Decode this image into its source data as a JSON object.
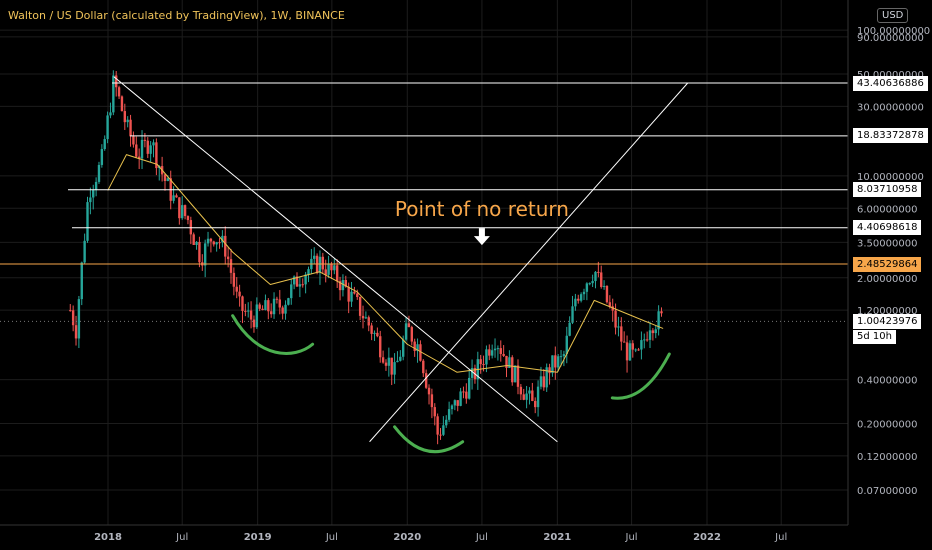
{
  "header": {
    "title": "Walton / US Dollar (calculated by TradingView), 1W, BINANCE",
    "currency": "USD"
  },
  "chart_data": {
    "type": "candlestick",
    "title": "Walton / US Dollar (calculated by TradingView), 1W, BINANCE",
    "y_scale": "log",
    "ylim": [
      0.05,
      110
    ],
    "y_ticks": [
      "100.00000000",
      "90.00000000",
      "50.00000000",
      "30.00000000",
      "10.00000000",
      "6.00000000",
      "3.50000000",
      "2.00000000",
      "1.20000000",
      "0.40000000",
      "0.20000000",
      "0.12000000",
      "0.07000000"
    ],
    "y_tick_values": [
      100,
      90,
      50,
      30,
      10,
      6,
      3.5,
      2,
      1.2,
      0.4,
      0.2,
      0.12,
      0.07
    ],
    "x_ticks": [
      "2018",
      "Jul",
      "2019",
      "Jul",
      "2020",
      "Jul",
      "2021",
      "Jul",
      "2022",
      "Jul"
    ],
    "x_tick_dates": [
      "2018-01-01",
      "2018-07-01",
      "2019-01-01",
      "2019-07-01",
      "2020-01-01",
      "2020-07-01",
      "2021-01-01",
      "2021-07-01",
      "2022-01-01",
      "2022-07-01"
    ],
    "horizontal_levels": [
      {
        "value": 43.40636886,
        "label": "43.40636886",
        "color": "#ffffff"
      },
      {
        "value": 18.83372878,
        "label": "18.83372878",
        "color": "#ffffff"
      },
      {
        "value": 8.03710958,
        "label": "8.03710958",
        "color": "#ffffff"
      },
      {
        "value": 4.40698618,
        "label": "4.40698618",
        "color": "#ffffff"
      },
      {
        "value": 2.48529864,
        "label": "2.48529864",
        "color": "#f7a64a"
      }
    ],
    "last_price": {
      "value": 1.00423976,
      "label": "1.00423976",
      "countdown": "5d 10h"
    },
    "trend_lines": [
      {
        "from": {
          "date": "2018-01-15",
          "value": 48
        },
        "to": {
          "date": "2021-01-01",
          "value": 0.15
        }
      },
      {
        "from": {
          "date": "2019-10-01",
          "value": 0.15
        },
        "to": {
          "date": "2021-11-15",
          "value": 43.4
        }
      }
    ],
    "annotation": {
      "text": "Point of no return",
      "date": "2020-07-01",
      "value": 5.3,
      "color": "#f7a64a"
    },
    "ohlc_path": [
      {
        "date": "2017-10-01",
        "value": 1.2
      },
      {
        "date": "2017-10-15",
        "value": 0.9
      },
      {
        "date": "2017-11-15",
        "value": 8.0
      },
      {
        "date": "2017-12-15",
        "value": 12.0
      },
      {
        "date": "2018-01-15",
        "value": 45.0
      },
      {
        "date": "2018-02-15",
        "value": 22.0
      },
      {
        "date": "2018-03-15",
        "value": 14.0
      },
      {
        "date": "2018-04-15",
        "value": 18.0
      },
      {
        "date": "2018-05-15",
        "value": 10.0
      },
      {
        "date": "2018-06-15",
        "value": 6.5
      },
      {
        "date": "2018-07-15",
        "value": 5.0
      },
      {
        "date": "2018-08-15",
        "value": 2.8
      },
      {
        "date": "2018-09-15",
        "value": 4.0
      },
      {
        "date": "2018-10-15",
        "value": 3.2
      },
      {
        "date": "2018-11-15",
        "value": 1.3
      },
      {
        "date": "2018-12-15",
        "value": 1.05
      },
      {
        "date": "2019-01-15",
        "value": 1.2
      },
      {
        "date": "2019-03-01",
        "value": 1.3
      },
      {
        "date": "2019-04-15",
        "value": 2.1
      },
      {
        "date": "2019-06-01",
        "value": 2.6
      },
      {
        "date": "2019-07-15",
        "value": 2.0
      },
      {
        "date": "2019-09-01",
        "value": 1.3
      },
      {
        "date": "2019-10-15",
        "value": 0.8
      },
      {
        "date": "2019-12-01",
        "value": 0.45
      },
      {
        "date": "2020-01-01",
        "value": 0.9
      },
      {
        "date": "2020-02-01",
        "value": 0.65
      },
      {
        "date": "2020-03-15",
        "value": 0.17
      },
      {
        "date": "2020-05-01",
        "value": 0.28
      },
      {
        "date": "2020-06-15",
        "value": 0.45
      },
      {
        "date": "2020-08-01",
        "value": 0.8
      },
      {
        "date": "2020-09-15",
        "value": 0.45
      },
      {
        "date": "2020-11-01",
        "value": 0.27
      },
      {
        "date": "2020-12-15",
        "value": 0.5
      },
      {
        "date": "2021-01-15",
        "value": 0.55
      },
      {
        "date": "2021-02-15",
        "value": 1.5
      },
      {
        "date": "2021-04-01",
        "value": 2.3
      },
      {
        "date": "2021-05-15",
        "value": 1.1
      },
      {
        "date": "2021-06-15",
        "value": 0.65
      },
      {
        "date": "2021-07-15",
        "value": 0.55
      },
      {
        "date": "2021-08-15",
        "value": 1.0
      },
      {
        "date": "2021-09-15",
        "value": 1.05
      }
    ],
    "moving_average": [
      {
        "date": "2018-01-01",
        "value": 8.0
      },
      {
        "date": "2018-02-15",
        "value": 14.0
      },
      {
        "date": "2018-05-01",
        "value": 12.0
      },
      {
        "date": "2018-08-01",
        "value": 6.0
      },
      {
        "date": "2018-11-01",
        "value": 3.0
      },
      {
        "date": "2019-02-01",
        "value": 1.8
      },
      {
        "date": "2019-06-01",
        "value": 2.2
      },
      {
        "date": "2019-09-01",
        "value": 1.6
      },
      {
        "date": "2020-01-01",
        "value": 0.7
      },
      {
        "date": "2020-05-01",
        "value": 0.45
      },
      {
        "date": "2020-09-01",
        "value": 0.5
      },
      {
        "date": "2021-01-01",
        "value": 0.45
      },
      {
        "date": "2021-04-01",
        "value": 1.4
      },
      {
        "date": "2021-07-01",
        "value": 1.1
      },
      {
        "date": "2021-09-15",
        "value": 0.9
      }
    ],
    "support_curves": [
      [
        {
          "date": "2018-11-01",
          "value": 1.1
        },
        {
          "date": "2019-01-01",
          "value": 0.55
        },
        {
          "date": "2019-04-01",
          "value": 0.55
        },
        {
          "date": "2019-05-15",
          "value": 0.7
        }
      ],
      [
        {
          "date": "2019-12-01",
          "value": 0.19
        },
        {
          "date": "2020-02-15",
          "value": 0.1
        },
        {
          "date": "2020-05-15",
          "value": 0.15
        }
      ],
      [
        {
          "date": "2021-05-15",
          "value": 0.3
        },
        {
          "date": "2021-08-01",
          "value": 0.28
        },
        {
          "date": "2021-10-01",
          "value": 0.6
        }
      ]
    ],
    "colors": {
      "up": "#26a69a",
      "down": "#ef5350",
      "ma": "#e7c04d",
      "support": "#4caf50",
      "level": "#ffffff",
      "annotation": "#f7a64a",
      "grid": "#1c1c1c"
    }
  }
}
